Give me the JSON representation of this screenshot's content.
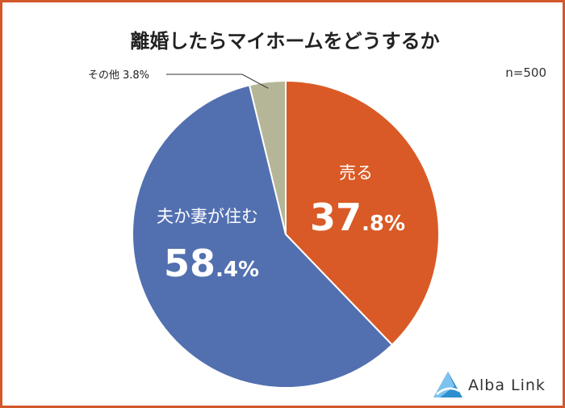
{
  "title": "離婚したらマイホームをどうするか",
  "sample_size": "n=500",
  "brand": "Alba Link",
  "chart_data": {
    "type": "pie",
    "title": "離婚したらマイホームをどうするか",
    "slices": [
      {
        "label": "売る",
        "value": 37.8,
        "int": "37",
        "dec": ".8%",
        "color": "#d95a26"
      },
      {
        "label": "夫か妻が住む",
        "value": 58.4,
        "int": "58",
        "dec": ".4%",
        "color": "#5270b0"
      },
      {
        "label": "その他",
        "value": 3.8,
        "text": "3.8%",
        "color": "#b5b597"
      }
    ]
  },
  "colors": {
    "border": "#d2572a",
    "logo": "#2e8fd0"
  }
}
